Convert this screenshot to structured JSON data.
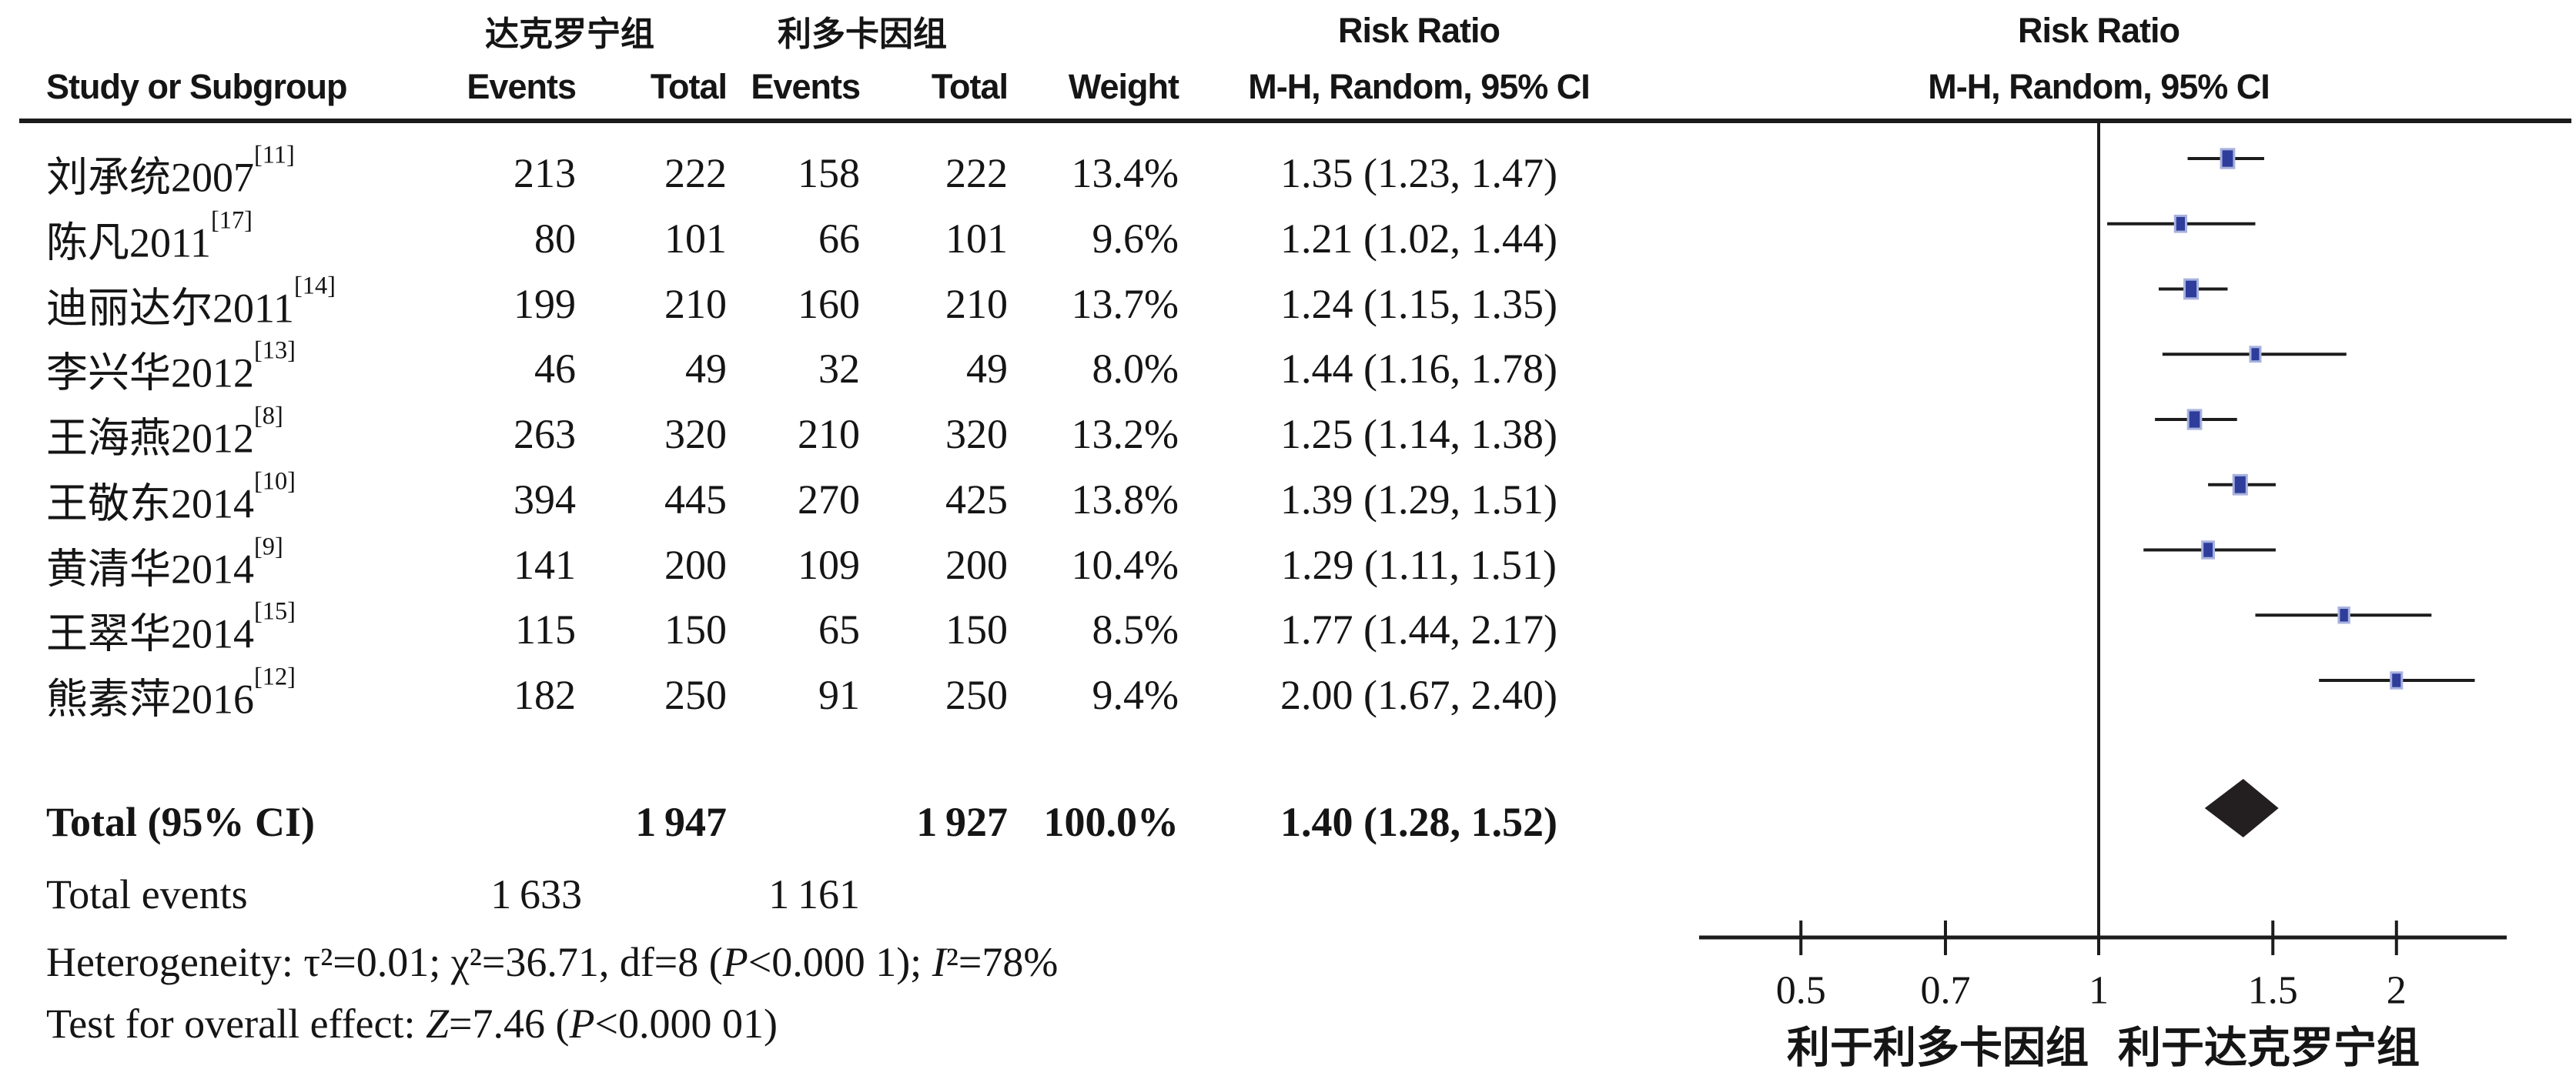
{
  "header": {
    "group1": "达克罗宁组",
    "group2": "利多卡因组",
    "col_study": "Study or Subgroup",
    "col_events1": "Events",
    "col_total1": "Total",
    "col_events2": "Events",
    "col_total2": "Total",
    "col_weight": "Weight",
    "rr_title_left": "Risk Ratio",
    "rr_title_right": "Risk Ratio",
    "mh_left": "M-H, Random, 95% CI",
    "mh_right": "M-H, Random, 95% CI"
  },
  "studies": [
    {
      "name": "刘承统2007",
      "ref": "[11]",
      "events1": "213",
      "total1": "222",
      "events2": "158",
      "total2": "222",
      "weight": "13.4%",
      "rr_text": "1.35 (1.23, 1.47)"
    },
    {
      "name": "陈凡2011",
      "ref": "[17]",
      "events1": "80",
      "total1": "101",
      "events2": "66",
      "total2": "101",
      "weight": "9.6%",
      "rr_text": "1.21 (1.02, 1.44)"
    },
    {
      "name": "迪丽达尔2011",
      "ref": "[14]",
      "events1": "199",
      "total1": "210",
      "events2": "160",
      "total2": "210",
      "weight": "13.7%",
      "rr_text": "1.24 (1.15, 1.35)"
    },
    {
      "name": "李兴华2012",
      "ref": "[13]",
      "events1": "46",
      "total1": "49",
      "events2": "32",
      "total2": "49",
      "weight": "8.0%",
      "rr_text": "1.44 (1.16, 1.78)"
    },
    {
      "name": "王海燕2012",
      "ref": "[8]",
      "events1": "263",
      "total1": "320",
      "events2": "210",
      "total2": "320",
      "weight": "13.2%",
      "rr_text": "1.25 (1.14, 1.38)"
    },
    {
      "name": "王敬东2014",
      "ref": "[10]",
      "events1": "394",
      "total1": "445",
      "events2": "270",
      "total2": "425",
      "weight": "13.8%",
      "rr_text": "1.39 (1.29, 1.51)"
    },
    {
      "name": "黄清华2014",
      "ref": "[9]",
      "events1": "141",
      "total1": "200",
      "events2": "109",
      "total2": "200",
      "weight": "10.4%",
      "rr_text": "1.29 (1.11, 1.51)"
    },
    {
      "name": "王翠华2014",
      "ref": "[15]",
      "events1": "115",
      "total1": "150",
      "events2": "65",
      "total2": "150",
      "weight": "8.5%",
      "rr_text": "1.77 (1.44, 2.17)"
    },
    {
      "name": "熊素萍2016",
      "ref": "[12]",
      "events1": "182",
      "total1": "250",
      "events2": "91",
      "total2": "250",
      "weight": "9.4%",
      "rr_text": "2.00 (1.67, 2.40)"
    }
  ],
  "total_row": {
    "label": "Total (95% CI)",
    "total1": "1 947",
    "total2": "1 927",
    "weight": "100.0%",
    "rr_text": "1.40 (1.28, 1.52)"
  },
  "stats": {
    "total_events_label": "Total events",
    "total_events_1": "1 633",
    "total_events_2": "1 161",
    "het_prefix": "Heterogeneity: τ²=0.01; χ²=36.71, df=8 (",
    "het_p": "P",
    "het_mid": "<0.000 1); ",
    "het_i": "I",
    "het_suffix": "²=78%",
    "test_prefix": "Test for overall effect: ",
    "test_z": "Z",
    "test_mid": "=7.46 (",
    "test_p": "P",
    "test_suffix": "<0.000 01)"
  },
  "axis": {
    "ticks": [
      "0.5",
      "0.7",
      "1",
      "1.5",
      "2"
    ],
    "tick_values": [
      0.5,
      0.7,
      1,
      1.5,
      2
    ],
    "label_left": "利于利多卡因组",
    "label_right": "利于达克罗宁组"
  },
  "colors": {
    "square_fill": "#2e3d9b",
    "square_stroke": "#a8b2de",
    "line": "#1c1c1c",
    "diamond": "#231f20"
  },
  "chart_data": {
    "type": "scatter",
    "subtype": "forest-plot-risk-ratio",
    "title": "Risk Ratio  M-H, Random, 95% CI",
    "x_scale": "log",
    "x_ticks": [
      0.5,
      0.7,
      1,
      1.5,
      2
    ],
    "x_range_approx": [
      0.39,
      2.56
    ],
    "reference_line": 1.0,
    "xlabel_left": "利于利多卡因组",
    "xlabel_right": "利于达克罗宁组",
    "points": [
      {
        "label": "刘承统2007[11]",
        "rr": 1.35,
        "ci_low": 1.23,
        "ci_high": 1.47,
        "weight_pct": 13.4
      },
      {
        "label": "陈凡2011[17]",
        "rr": 1.21,
        "ci_low": 1.02,
        "ci_high": 1.44,
        "weight_pct": 9.6
      },
      {
        "label": "迪丽达尔2011[14]",
        "rr": 1.24,
        "ci_low": 1.15,
        "ci_high": 1.35,
        "weight_pct": 13.7
      },
      {
        "label": "李兴华2012[13]",
        "rr": 1.44,
        "ci_low": 1.16,
        "ci_high": 1.78,
        "weight_pct": 8.0
      },
      {
        "label": "王海燕2012[8]",
        "rr": 1.25,
        "ci_low": 1.14,
        "ci_high": 1.38,
        "weight_pct": 13.2
      },
      {
        "label": "王敬东2014[10]",
        "rr": 1.39,
        "ci_low": 1.29,
        "ci_high": 1.51,
        "weight_pct": 13.8
      },
      {
        "label": "黄清华2014[9]",
        "rr": 1.29,
        "ci_low": 1.11,
        "ci_high": 1.51,
        "weight_pct": 10.4
      },
      {
        "label": "王翠华2014[15]",
        "rr": 1.77,
        "ci_low": 1.44,
        "ci_high": 2.17,
        "weight_pct": 8.5
      },
      {
        "label": "熊素萍2016[12]",
        "rr": 2.0,
        "ci_low": 1.67,
        "ci_high": 2.4,
        "weight_pct": 9.4
      }
    ],
    "total_diamond": {
      "label": "Total (95% CI)",
      "rr": 1.4,
      "ci_low": 1.28,
      "ci_high": 1.52,
      "weight_pct": 100.0
    }
  }
}
